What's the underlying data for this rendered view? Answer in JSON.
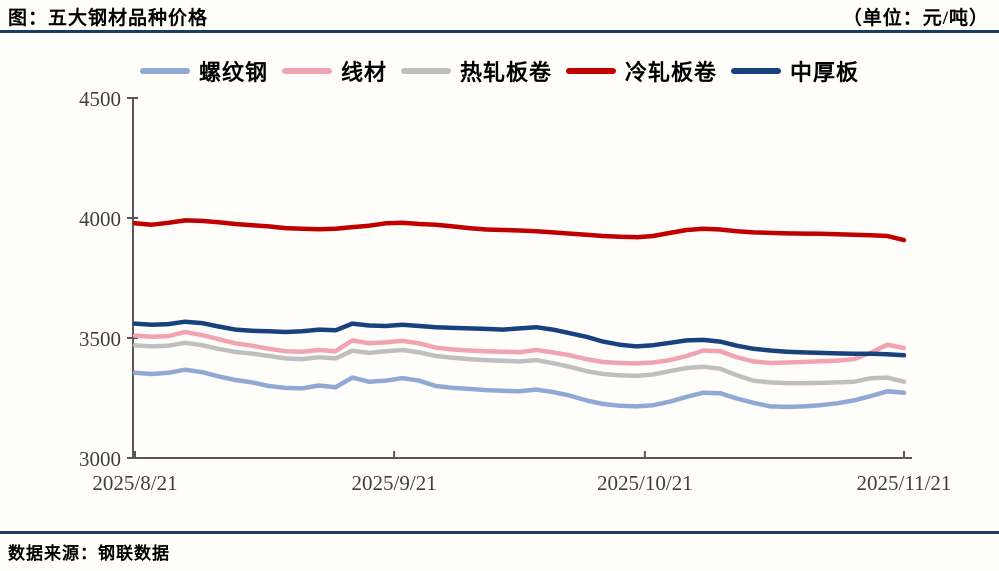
{
  "header": {
    "title": "图：五大钢材品种价格",
    "unit": "（单位：元/吨）"
  },
  "footer": {
    "source": "数据来源：钢联数据"
  },
  "colors": {
    "rule_navy": "#1F3864",
    "axis": "#595959",
    "tick_label": "#3F3F3F",
    "rebar": "#8FA8D4",
    "wire_rod": "#F2A3B1",
    "hot_rolled_coil": "#BFBFBF",
    "cold_rolled_coil": "#C00000",
    "medium_plate": "#17427E"
  },
  "chart_data": {
    "type": "line",
    "title": "五大钢材品种价格",
    "unit": "元/吨",
    "legend_position": "top",
    "grid": false,
    "ylim": [
      3000,
      4500
    ],
    "y_ticks": [
      3000,
      3500,
      4000,
      4500
    ],
    "x_total_days": 92,
    "x_ticks": [
      {
        "day": 0,
        "label": "2025/8/21"
      },
      {
        "day": 31,
        "label": "2025/9/21"
      },
      {
        "day": 61,
        "label": "2025/10/21"
      },
      {
        "day": 92,
        "label": "2025/11/21"
      }
    ],
    "x": [
      "2025/8/21",
      "2025/8/23",
      "2025/8/25",
      "2025/8/27",
      "2025/8/29",
      "2025/8/31",
      "2025/9/2",
      "2025/9/4",
      "2025/9/6",
      "2025/9/8",
      "2025/9/10",
      "2025/9/12",
      "2025/9/14",
      "2025/9/16",
      "2025/9/18",
      "2025/9/20",
      "2025/9/22",
      "2025/9/24",
      "2025/9/26",
      "2025/9/28",
      "2025/9/30",
      "2025/10/2",
      "2025/10/4",
      "2025/10/6",
      "2025/10/8",
      "2025/10/10",
      "2025/10/12",
      "2025/10/14",
      "2025/10/16",
      "2025/10/18",
      "2025/10/20",
      "2025/10/22",
      "2025/10/24",
      "2025/10/26",
      "2025/10/28",
      "2025/10/30",
      "2025/11/1",
      "2025/11/3",
      "2025/11/5",
      "2025/11/7",
      "2025/11/9",
      "2025/11/11",
      "2025/11/13",
      "2025/11/15",
      "2025/11/17",
      "2025/11/19",
      "2025/11/21"
    ],
    "series": [
      {
        "name": "螺纹钢",
        "color": "#8FA8D4",
        "values": [
          3355,
          3350,
          3355,
          3368,
          3358,
          3340,
          3325,
          3315,
          3300,
          3292,
          3290,
          3302,
          3295,
          3335,
          3318,
          3322,
          3333,
          3322,
          3300,
          3292,
          3288,
          3283,
          3280,
          3278,
          3285,
          3275,
          3260,
          3240,
          3225,
          3218,
          3215,
          3220,
          3235,
          3255,
          3272,
          3270,
          3248,
          3230,
          3215,
          3213,
          3215,
          3220,
          3228,
          3240,
          3258,
          3278,
          3272
        ]
      },
      {
        "name": "线材",
        "color": "#F2A3B1",
        "values": [
          3510,
          3505,
          3508,
          3525,
          3512,
          3495,
          3478,
          3468,
          3455,
          3445,
          3443,
          3450,
          3445,
          3490,
          3478,
          3482,
          3488,
          3478,
          3460,
          3452,
          3448,
          3445,
          3443,
          3441,
          3450,
          3440,
          3428,
          3412,
          3400,
          3396,
          3394,
          3398,
          3408,
          3425,
          3448,
          3445,
          3420,
          3402,
          3396,
          3398,
          3400,
          3403,
          3406,
          3412,
          3438,
          3472,
          3458
        ]
      },
      {
        "name": "热轧板卷",
        "color": "#BFBFBF",
        "values": [
          3470,
          3465,
          3468,
          3480,
          3470,
          3455,
          3442,
          3435,
          3425,
          3415,
          3412,
          3420,
          3415,
          3447,
          3438,
          3445,
          3450,
          3440,
          3425,
          3418,
          3412,
          3408,
          3405,
          3402,
          3408,
          3395,
          3380,
          3362,
          3350,
          3344,
          3342,
          3348,
          3362,
          3375,
          3380,
          3372,
          3345,
          3322,
          3315,
          3312,
          3312,
          3313,
          3315,
          3318,
          3332,
          3335,
          3318
        ]
      },
      {
        "name": "冷轧板卷",
        "color": "#C00000",
        "values": [
          3978,
          3972,
          3980,
          3990,
          3988,
          3982,
          3975,
          3970,
          3965,
          3958,
          3955,
          3953,
          3955,
          3962,
          3968,
          3978,
          3980,
          3975,
          3972,
          3965,
          3958,
          3952,
          3950,
          3948,
          3945,
          3940,
          3935,
          3930,
          3925,
          3922,
          3920,
          3925,
          3938,
          3950,
          3955,
          3952,
          3945,
          3940,
          3938,
          3936,
          3935,
          3934,
          3932,
          3930,
          3928,
          3925,
          3908
        ]
      },
      {
        "name": "中厚板",
        "color": "#17427E",
        "values": [
          3560,
          3555,
          3558,
          3568,
          3562,
          3548,
          3535,
          3530,
          3528,
          3525,
          3528,
          3535,
          3532,
          3560,
          3552,
          3550,
          3555,
          3550,
          3545,
          3542,
          3540,
          3538,
          3535,
          3540,
          3545,
          3535,
          3520,
          3505,
          3485,
          3472,
          3465,
          3470,
          3480,
          3490,
          3492,
          3485,
          3468,
          3455,
          3448,
          3443,
          3440,
          3438,
          3436,
          3434,
          3434,
          3432,
          3428
        ]
      }
    ]
  }
}
